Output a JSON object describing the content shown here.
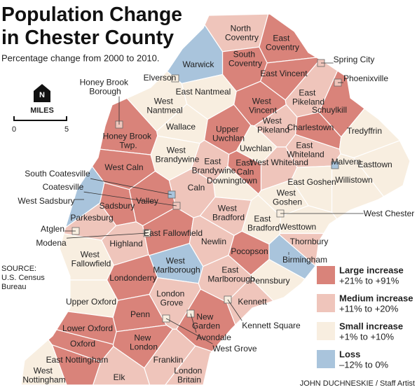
{
  "header": {
    "title_lines": [
      "Population Change",
      "in Chester County"
    ],
    "subtitle": "Percentage change from 2000 to 2010."
  },
  "scale": {
    "north": "N",
    "unit": "MILES",
    "start": "0",
    "end": "5"
  },
  "source_lines": [
    "SOURCE:",
    "U.S. Census",
    "Bureau"
  ],
  "credit": "JOHN DUCHNESKIE / Staff Artist",
  "legend": [
    {
      "name": "Large increase",
      "range": "+21% to +91%",
      "color": "#d9837a"
    },
    {
      "name": "Medium increase",
      "range": "+11% to +20%",
      "color": "#efc5bb"
    },
    {
      "name": "Small increase",
      "range": "+1% to +10%",
      "color": "#f8eee0"
    },
    {
      "name": "Loss",
      "range": "–12% to 0%",
      "color": "#a9c4dc"
    }
  ],
  "regions": [
    {
      "name": "North Coventry",
      "category": "Medium increase"
    },
    {
      "name": "East Coventry",
      "category": "Large increase"
    },
    {
      "name": "South Coventry",
      "category": "Large increase"
    },
    {
      "name": "Warwick",
      "category": "Loss"
    },
    {
      "name": "Spring City",
      "category": "Medium increase"
    },
    {
      "name": "East Vincent",
      "category": "Large increase"
    },
    {
      "name": "Phoenixville",
      "category": "Medium increase"
    },
    {
      "name": "Elverson",
      "category": "Small increase"
    },
    {
      "name": "Honey Brook Borough",
      "category": "Medium increase"
    },
    {
      "name": "East Nantmeal",
      "category": "Small increase"
    },
    {
      "name": "West Nantmeal",
      "category": "Small increase"
    },
    {
      "name": "West Vincent",
      "category": "Large increase"
    },
    {
      "name": "East Pikeland",
      "category": "Medium increase"
    },
    {
      "name": "Schuylkill",
      "category": "Large increase"
    },
    {
      "name": "Wallace",
      "category": "Small increase"
    },
    {
      "name": "Upper Uwchlan",
      "category": "Large increase"
    },
    {
      "name": "West Pikeland",
      "category": "Medium increase"
    },
    {
      "name": "Charlestown",
      "category": "Large increase"
    },
    {
      "name": "Tredyffrin",
      "category": "Small increase"
    },
    {
      "name": "Honey Brook Twp.",
      "category": "Large increase"
    },
    {
      "name": "West Brandywine",
      "category": "Small increase"
    },
    {
      "name": "East Brandywine",
      "category": "Medium increase"
    },
    {
      "name": "Uwchlan",
      "category": "Small increase"
    },
    {
      "name": "East Whiteland",
      "category": "Medium increase"
    },
    {
      "name": "Malvern",
      "category": "Loss"
    },
    {
      "name": "Easttown",
      "category": "Small increase"
    },
    {
      "name": "West Caln",
      "category": "Large increase"
    },
    {
      "name": "East Caln",
      "category": "Large increase"
    },
    {
      "name": "West Whiteland",
      "category": "Medium increase"
    },
    {
      "name": "Downingtown",
      "category": "Small increase"
    },
    {
      "name": "Willistown",
      "category": "Small increase"
    },
    {
      "name": "South Coatesville",
      "category": "Loss"
    },
    {
      "name": "Coatesville",
      "category": "Medium increase"
    },
    {
      "name": "Caln",
      "category": "Medium increase"
    },
    {
      "name": "East Goshen",
      "category": "Small increase"
    },
    {
      "name": "West Sadsbury",
      "category": "Loss"
    },
    {
      "name": "Sadsbury",
      "category": "Large increase"
    },
    {
      "name": "Valley",
      "category": "Large increase"
    },
    {
      "name": "West Goshen",
      "category": "Small increase"
    },
    {
      "name": "Parkesburg",
      "category": "Medium increase"
    },
    {
      "name": "West Bradford",
      "category": "Medium increase"
    },
    {
      "name": "East Bradford",
      "category": "Small increase"
    },
    {
      "name": "West Chester",
      "category": "Small increase"
    },
    {
      "name": "Atglen",
      "category": "Small increase"
    },
    {
      "name": "Modena",
      "category": "Small increase"
    },
    {
      "name": "Highland",
      "category": "Medium increase"
    },
    {
      "name": "East Fallowfield",
      "category": "Large increase"
    },
    {
      "name": "Newlin",
      "category": "Medium increase"
    },
    {
      "name": "Westtown",
      "category": "Small increase"
    },
    {
      "name": "Thornbury",
      "category": "Medium increase"
    },
    {
      "name": "West Fallowfield",
      "category": "Small increase"
    },
    {
      "name": "Pocopson",
      "category": "Large increase"
    },
    {
      "name": "Birmingham",
      "category": "Loss"
    },
    {
      "name": "West Marlborough",
      "category": "Loss"
    },
    {
      "name": "East Marlborough",
      "category": "Medium increase"
    },
    {
      "name": "Londonderry",
      "category": "Large increase"
    },
    {
      "name": "Pennsbury",
      "category": "Small increase"
    },
    {
      "name": "Upper Oxford",
      "category": "Small increase"
    },
    {
      "name": "London Grove",
      "category": "Medium increase"
    },
    {
      "name": "Kennett",
      "category": "Medium increase"
    },
    {
      "name": "Kennett Square",
      "category": "Small increase"
    },
    {
      "name": "Penn",
      "category": "Large increase"
    },
    {
      "name": "New Garden",
      "category": "Large increase"
    },
    {
      "name": "Lower Oxford",
      "category": "Large increase"
    },
    {
      "name": "Avondale",
      "category": "Small increase"
    },
    {
      "name": "Oxford",
      "category": "Large increase"
    },
    {
      "name": "New London",
      "category": "Large increase"
    },
    {
      "name": "West Grove",
      "category": "Small increase"
    },
    {
      "name": "East Nottingham",
      "category": "Large increase"
    },
    {
      "name": "Franklin",
      "category": "Medium increase"
    },
    {
      "name": "West Nottingham",
      "category": "Small increase"
    },
    {
      "name": "Elk",
      "category": "Medium increase"
    },
    {
      "name": "London Britain",
      "category": "Medium increase"
    }
  ]
}
